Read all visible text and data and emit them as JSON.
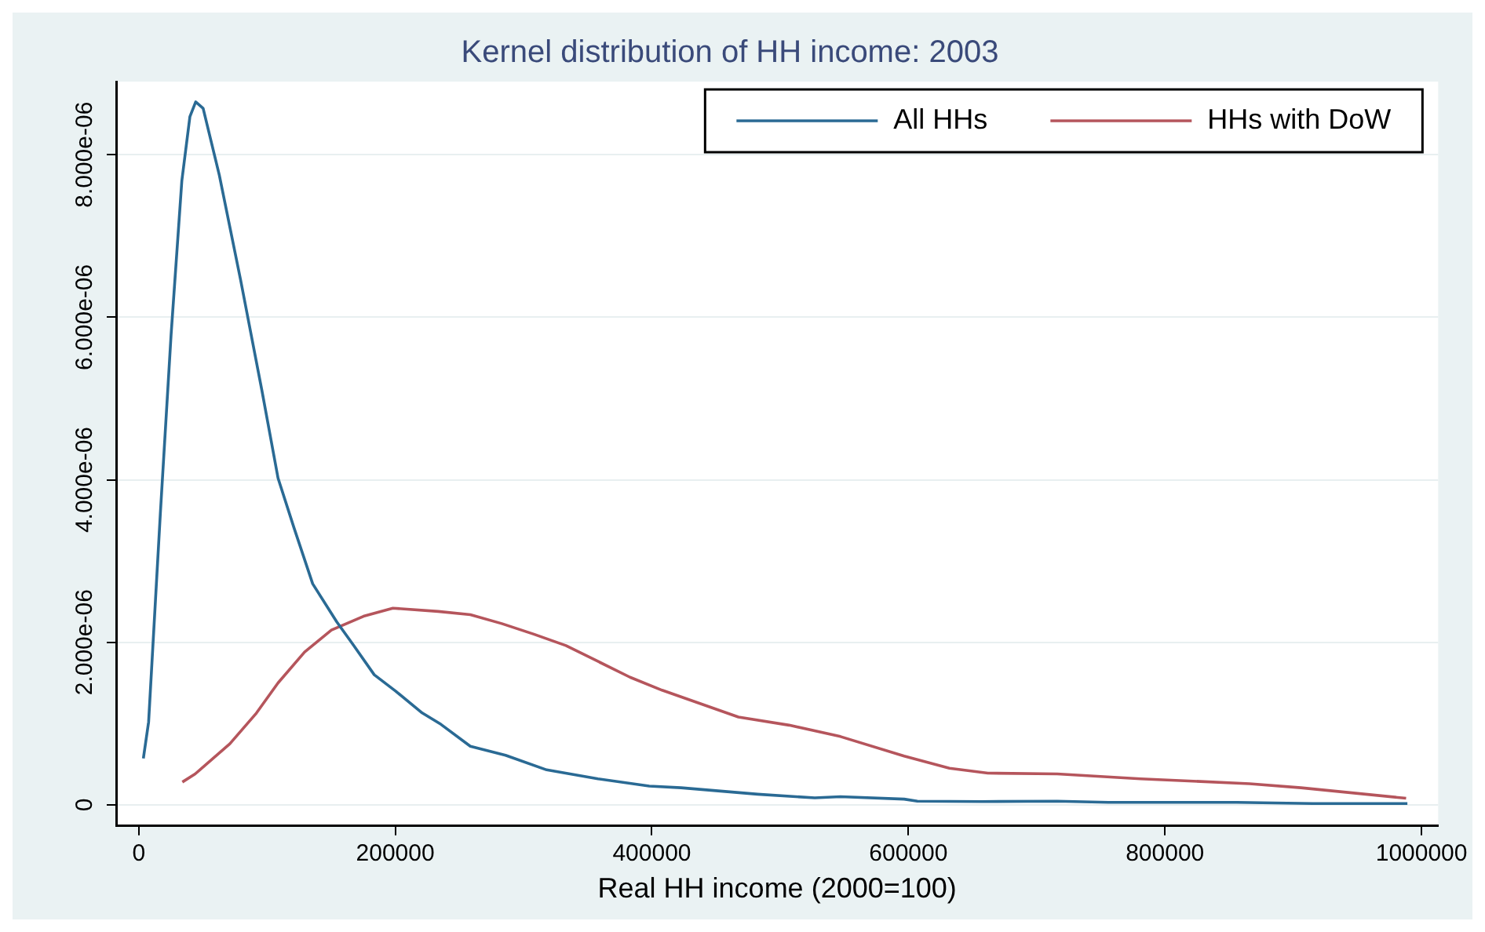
{
  "chart_data": {
    "type": "line",
    "title": "Kernel distribution of HH income: 2003",
    "xlabel": "Real HH income (2000=100)",
    "xlim": [
      -17600,
      1013000
    ],
    "xticks": [
      0,
      200000,
      400000,
      600000,
      800000,
      1000000
    ],
    "ylim": [
      -2.6e-07,
      8.9e-06
    ],
    "yticks": [
      0,
      {
        "value": 2e-06,
        "label": "2.000e-06"
      },
      {
        "value": 4e-06,
        "label": "4.000e-06"
      },
      {
        "value": 6e-06,
        "label": "6.000e-06"
      },
      {
        "value": 8e-06,
        "label": "8.000e-06"
      }
    ],
    "grid": "y",
    "legend": "top right",
    "marker": "none",
    "line_style": "solid",
    "series": [
      {
        "name": "All HHs",
        "color": "#2a6a94",
        "x": [
          3600,
          7700,
          16900,
          25200,
          33600,
          39900,
          44400,
          50200,
          62800,
          79400,
          96000,
          108600,
          121000,
          135600,
          154400,
          166700,
          183600,
          200200,
          221000,
          235600,
          258500,
          286000,
          318000,
          358000,
          398000,
          422700,
          482600,
          527000,
          547000,
          596700,
          607000,
          657000,
          716000,
          756000,
          856000,
          915000,
          989000
        ],
        "values": [
          5.7e-07,
          1.02e-06,
          3.6e-06,
          5.78e-06,
          7.68e-06,
          8.47e-06,
          8.65e-06,
          8.57e-06,
          7.75e-06,
          6.46e-06,
          5.1e-06,
          4.02e-06,
          3.41e-06,
          2.72e-06,
          2.25e-06,
          1.98e-06,
          1.6e-06,
          1.4e-06,
          1.13e-06,
          9.9e-07,
          7.2e-07,
          6.1e-07,
          4.3e-07,
          3.2e-07,
          2.3e-07,
          2.1e-07,
          1.3e-07,
          8.5e-08,
          1e-07,
          7e-08,
          4.5e-08,
          4e-08,
          4.5e-08,
          3e-08,
          3e-08,
          1.5e-08,
          1.5e-08
        ]
      },
      {
        "name": "HHs with DoW",
        "color": "#b5555c",
        "x": [
          34000,
          44000,
          71000,
          91800,
          108600,
          129300,
          150200,
          175200,
          198100,
          233500,
          258500,
          283000,
          308000,
          333000,
          383000,
          408000,
          467500,
          507000,
          547000,
          596700,
          632000,
          662000,
          716000,
          781000,
          866000,
          906000,
          988000
        ],
        "values": [
          2.8e-07,
          3.8e-07,
          7.5e-07,
          1.13e-06,
          1.5e-06,
          1.88e-06,
          2.15e-06,
          2.32e-06,
          2.42e-06,
          2.38e-06,
          2.34e-06,
          2.23e-06,
          2.1e-06,
          1.96e-06,
          1.57e-06,
          1.41e-06,
          1.08e-06,
          9.8e-07,
          8.4e-07,
          6e-07,
          4.5e-07,
          3.9e-07,
          3.8e-07,
          3.2e-07,
          2.6e-07,
          2.1e-07,
          8e-08
        ]
      }
    ]
  }
}
